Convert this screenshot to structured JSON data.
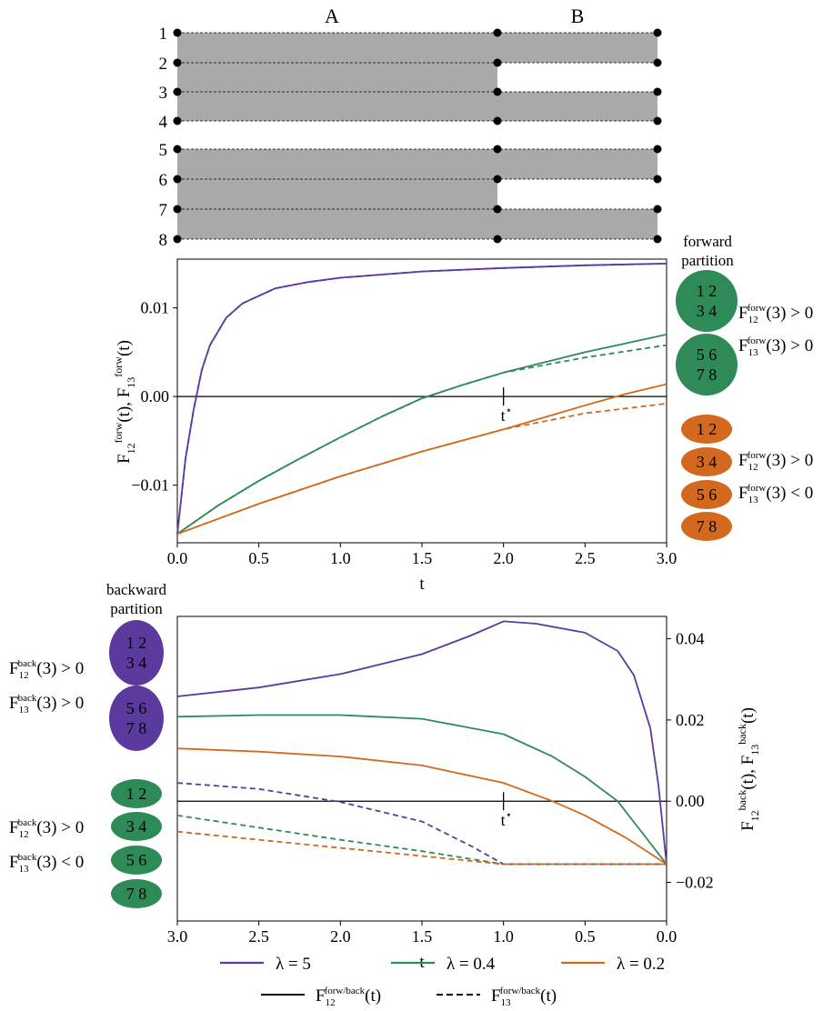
{
  "diagram": {
    "column_labels": [
      "A",
      "B"
    ],
    "row_labels": [
      "1",
      "2",
      "3",
      "4",
      "5",
      "6",
      "7",
      "8"
    ]
  },
  "forward": {
    "side_title_lines": [
      "forward",
      "partition"
    ],
    "ylabel": "F12forw(t), F13forw(t)",
    "xlabel": "t",
    "xticks": [
      "0.0",
      "0.5",
      "1.0",
      "1.5",
      "2.0",
      "2.5",
      "3.0"
    ],
    "yticks": [
      "0.01",
      "0.00",
      "−0.01"
    ],
    "tstar": "t*",
    "groups_top": [
      "1 2",
      "3 4",
      "5 6",
      "7 8"
    ],
    "groups_bottom": [
      "1 2",
      "3 4",
      "5 6",
      "7 8"
    ],
    "annotations": [
      "F12forw(3) > 0",
      "F13forw(3) > 0",
      "F12forw(3) > 0",
      "F13forw(3) < 0"
    ]
  },
  "backward": {
    "side_title_lines": [
      "backward",
      "partition"
    ],
    "ylabel": "F12back(t), F13back(t)",
    "xlabel": "t",
    "xticks": [
      "3.0",
      "2.5",
      "2.0",
      "1.5",
      "1.0",
      "0.5",
      "0.0"
    ],
    "yticks": [
      "0.04",
      "0.02",
      "0.00",
      "−0.02"
    ],
    "tstar": "t*",
    "groups_top": [
      "1 2",
      "3 4",
      "5 6",
      "7 8"
    ],
    "groups_bottom": [
      "1 2",
      "3 4",
      "5 6",
      "7 8"
    ],
    "annotations": [
      "F12back(3) > 0",
      "F13back(3) > 0",
      "F12back(3) > 0",
      "F13back(3) < 0"
    ]
  },
  "legend": {
    "series": [
      "λ = 5",
      "λ = 0.4",
      "λ = 0.2"
    ],
    "styles": [
      "F12forw/back(t)",
      "F13forw/back(t)"
    ]
  },
  "colors": {
    "purple": "#5b3a9e",
    "green": "#2e8b57",
    "orange": "#d2691e",
    "grey": "#a9a9a9"
  },
  "chart_data": [
    {
      "type": "line",
      "xlabel": "t",
      "ylabel": "F12forw(t), F13forw(t)",
      "xlim": [
        0,
        3
      ],
      "ylim": [
        -0.0165,
        0.0155
      ],
      "tstar": 2.0,
      "series": [
        {
          "name": "λ = 5",
          "style": "F12",
          "points": [
            [
              0,
              -0.0155
            ],
            [
              0.05,
              -0.007
            ],
            [
              0.1,
              -0.0015
            ],
            [
              0.15,
              0.003
            ],
            [
              0.2,
              0.0058
            ],
            [
              0.3,
              0.0089
            ],
            [
              0.4,
              0.0105
            ],
            [
              0.6,
              0.0122
            ],
            [
              0.8,
              0.0129
            ],
            [
              1.0,
              0.0134
            ],
            [
              1.5,
              0.0141
            ],
            [
              2.0,
              0.0145
            ],
            [
              2.5,
              0.0148
            ],
            [
              3.0,
              0.015
            ]
          ]
        },
        {
          "name": "λ = 5",
          "style": "F13",
          "points": [
            [
              0,
              -0.0155
            ],
            [
              0.05,
              -0.007
            ],
            [
              0.1,
              -0.0015
            ],
            [
              0.15,
              0.003
            ],
            [
              0.2,
              0.0058
            ],
            [
              0.3,
              0.0089
            ],
            [
              0.4,
              0.0105
            ],
            [
              0.6,
              0.0122
            ],
            [
              0.8,
              0.0129
            ],
            [
              1.0,
              0.0134
            ],
            [
              1.5,
              0.0141
            ],
            [
              2.0,
              0.0145
            ],
            [
              2.5,
              0.0148
            ],
            [
              3.0,
              0.015
            ]
          ]
        },
        {
          "name": "λ = 0.4",
          "style": "F12",
          "points": [
            [
              0,
              -0.0155
            ],
            [
              0.25,
              -0.0123
            ],
            [
              0.5,
              -0.0095
            ],
            [
              0.75,
              -0.007
            ],
            [
              1.0,
              -0.0046
            ],
            [
              1.25,
              -0.0023
            ],
            [
              1.5,
              -0.0002
            ],
            [
              1.75,
              0.0013
            ],
            [
              2.0,
              0.0027
            ],
            [
              2.5,
              0.005
            ],
            [
              3.0,
              0.007
            ]
          ]
        },
        {
          "name": "λ = 0.4",
          "style": "F13",
          "points": [
            [
              0,
              -0.0155
            ],
            [
              0.25,
              -0.0123
            ],
            [
              0.5,
              -0.0095
            ],
            [
              0.75,
              -0.007
            ],
            [
              1.0,
              -0.0046
            ],
            [
              1.25,
              -0.0023
            ],
            [
              1.5,
              -0.0002
            ],
            [
              1.75,
              0.0013
            ],
            [
              2.0,
              0.0027
            ],
            [
              2.5,
              0.0044
            ],
            [
              3.0,
              0.0058
            ]
          ]
        },
        {
          "name": "λ = 0.2",
          "style": "F12",
          "points": [
            [
              0,
              -0.0155
            ],
            [
              0.5,
              -0.0121
            ],
            [
              1.0,
              -0.009
            ],
            [
              1.5,
              -0.0062
            ],
            [
              2.0,
              -0.0037
            ],
            [
              2.5,
              -0.001
            ],
            [
              2.75,
              0.0003
            ],
            [
              3.0,
              0.0014
            ]
          ]
        },
        {
          "name": "λ = 0.2",
          "style": "F13",
          "points": [
            [
              0,
              -0.0155
            ],
            [
              0.5,
              -0.0121
            ],
            [
              1.0,
              -0.009
            ],
            [
              1.5,
              -0.0062
            ],
            [
              2.0,
              -0.0037
            ],
            [
              2.5,
              -0.0019
            ],
            [
              3.0,
              -0.0008
            ]
          ]
        }
      ]
    },
    {
      "type": "line",
      "xlabel": "t",
      "ylabel": "F12back(t), F13back(t)",
      "xlim": [
        3,
        0
      ],
      "ylim": [
        -0.0295,
        0.0455
      ],
      "tstar": 1.0,
      "series": [
        {
          "name": "λ = 5",
          "style": "F12",
          "points": [
            [
              3.0,
              0.0258
            ],
            [
              2.5,
              0.028
            ],
            [
              2.0,
              0.0313
            ],
            [
              1.5,
              0.0362
            ],
            [
              1.2,
              0.0408
            ],
            [
              1.0,
              0.0443
            ],
            [
              0.8,
              0.0437
            ],
            [
              0.5,
              0.0415
            ],
            [
              0.3,
              0.037
            ],
            [
              0.2,
              0.031
            ],
            [
              0.1,
              0.018
            ],
            [
              0.05,
              0.004
            ],
            [
              0.0,
              -0.0155
            ]
          ]
        },
        {
          "name": "λ = 5",
          "style": "F13",
          "points": [
            [
              3.0,
              0.0045
            ],
            [
              2.5,
              0.003
            ],
            [
              2.0,
              -0.0002
            ],
            [
              1.5,
              -0.005
            ],
            [
              1.2,
              -0.011
            ],
            [
              1.0,
              -0.0155
            ],
            [
              0.5,
              -0.0155
            ],
            [
              0.0,
              -0.0155
            ]
          ]
        },
        {
          "name": "λ = 0.4",
          "style": "F12",
          "points": [
            [
              3.0,
              0.0208
            ],
            [
              2.5,
              0.0212
            ],
            [
              2.0,
              0.0212
            ],
            [
              1.5,
              0.0203
            ],
            [
              1.0,
              0.0165
            ],
            [
              0.7,
              0.011
            ],
            [
              0.5,
              0.006
            ],
            [
              0.3,
              0.0
            ],
            [
              0.0,
              -0.0155
            ]
          ]
        },
        {
          "name": "λ = 0.4",
          "style": "F13",
          "points": [
            [
              3.0,
              -0.0035
            ],
            [
              2.5,
              -0.0065
            ],
            [
              2.0,
              -0.0095
            ],
            [
              1.5,
              -0.0123
            ],
            [
              1.0,
              -0.0155
            ],
            [
              0.5,
              -0.0155
            ],
            [
              0.0,
              -0.0155
            ]
          ]
        },
        {
          "name": "λ = 0.2",
          "style": "F12",
          "points": [
            [
              3.0,
              0.013
            ],
            [
              2.5,
              0.0122
            ],
            [
              2.0,
              0.011
            ],
            [
              1.5,
              0.0088
            ],
            [
              1.0,
              0.0045
            ],
            [
              0.7,
              0.0
            ],
            [
              0.5,
              -0.0035
            ],
            [
              0.25,
              -0.009
            ],
            [
              0.0,
              -0.0155
            ]
          ]
        },
        {
          "name": "λ = 0.2",
          "style": "F13",
          "points": [
            [
              3.0,
              -0.0075
            ],
            [
              2.5,
              -0.0095
            ],
            [
              2.0,
              -0.0115
            ],
            [
              1.5,
              -0.0135
            ],
            [
              1.0,
              -0.0155
            ],
            [
              0.5,
              -0.0155
            ],
            [
              0.0,
              -0.0155
            ]
          ]
        }
      ]
    }
  ]
}
